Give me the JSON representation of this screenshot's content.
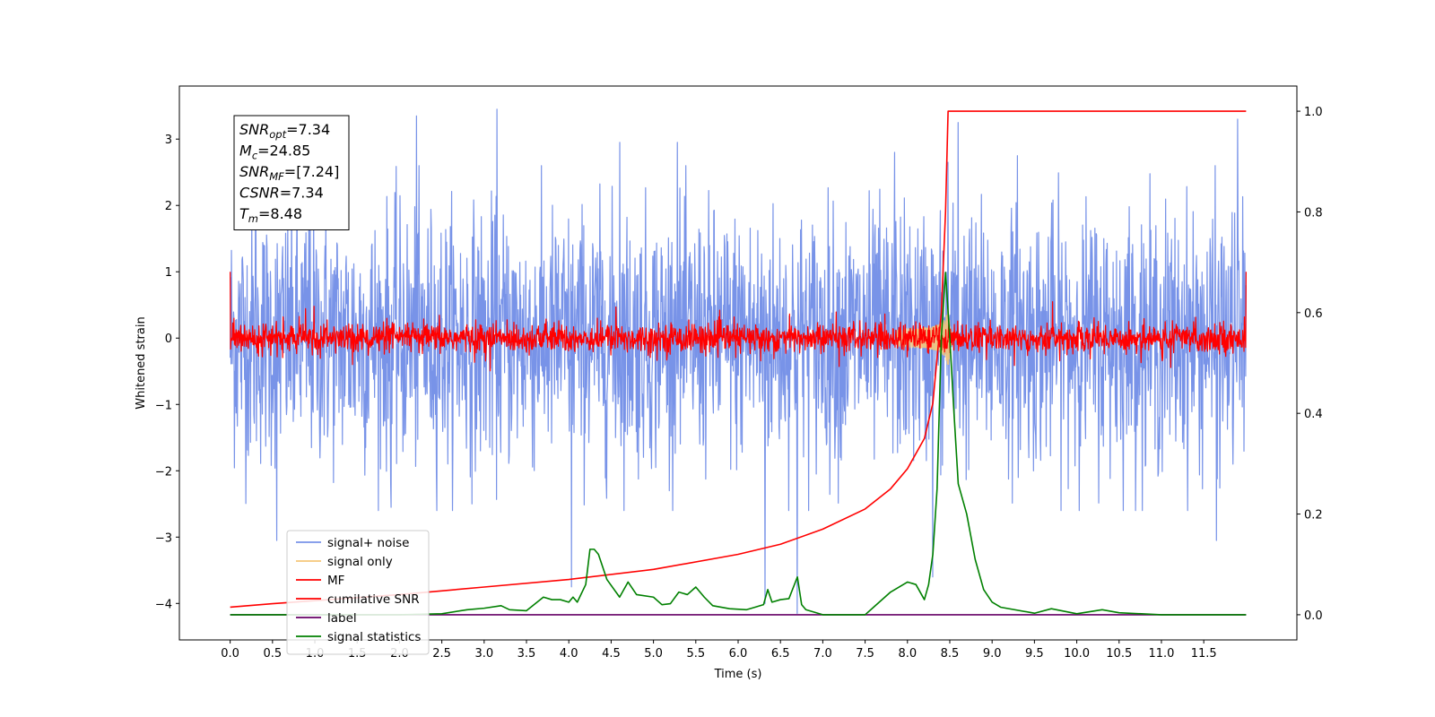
{
  "chart_data": {
    "type": "line",
    "xlabel": "Time (s)",
    "ylabel": "Whitened strain",
    "xlim": [
      -0.6,
      12.6
    ],
    "ylim": [
      -4.55,
      3.8
    ],
    "y2lim": [
      -0.05,
      1.05
    ],
    "x_ticks": [
      0.0,
      0.5,
      1.0,
      1.5,
      2.0,
      2.5,
      3.0,
      3.5,
      4.0,
      4.5,
      5.0,
      5.5,
      6.0,
      6.5,
      7.0,
      7.5,
      8.0,
      8.5,
      9.0,
      9.5,
      10.0,
      10.5,
      11.0,
      11.5
    ],
    "x_tick_labels": [
      "0.0",
      "0.5",
      "1.0",
      "1.5",
      "2.0",
      "2.5",
      "3.0",
      "3.5",
      "4.0",
      "4.5",
      "5.0",
      "5.5",
      "6.0",
      "6.5",
      "7.0",
      "7.5",
      "8.0",
      "8.5",
      "9.0",
      "9.5",
      "10.0",
      "10.5",
      "11.0",
      "11.5"
    ],
    "y_ticks": [
      -4,
      -3,
      -2,
      -1,
      0,
      1,
      2,
      3
    ],
    "y_tick_labels": [
      "−4",
      "−3",
      "−2",
      "−1",
      "0",
      "1",
      "2",
      "3"
    ],
    "y2_ticks": [
      0.0,
      0.2,
      0.4,
      0.6,
      0.8,
      1.0
    ],
    "y2_tick_labels": [
      "0.0",
      "0.2",
      "0.4",
      "0.6",
      "0.8",
      "1.0"
    ],
    "legend_placement": "lower-left",
    "grid": false,
    "annotation": {
      "lines": [
        {
          "sym": "SNR",
          "sub": "opt",
          "value": "=7.34"
        },
        {
          "sym": "M",
          "sub": "c",
          "value": "=24.85"
        },
        {
          "sym": "SNR",
          "sub": "MF",
          "value": "=[7.24]"
        },
        {
          "sym": "CSNR",
          "sub": "",
          "value": "=7.34"
        },
        {
          "sym": "T",
          "sub": "m",
          "value": "=8.48"
        }
      ]
    },
    "series": [
      {
        "name": "signal+ noise",
        "axis": "left",
        "color": "#7893e8",
        "kind": "noise",
        "x_range": [
          0.0,
          12.0
        ],
        "amplitude_range": [
          -3.75,
          3.45
        ],
        "spikes": [
          [
            0.3,
            2.35
          ],
          [
            0.55,
            -3.05
          ],
          [
            0.93,
            2.2
          ],
          [
            2.2,
            3.35
          ],
          [
            3.15,
            3.45
          ],
          [
            4.03,
            -3.75
          ],
          [
            4.6,
            2.95
          ],
          [
            6.32,
            -4.0
          ],
          [
            6.7,
            -4.15
          ],
          [
            7.85,
            2.8
          ],
          [
            8.3,
            -3.6
          ],
          [
            8.48,
            2.65
          ],
          [
            8.6,
            3.25
          ],
          [
            11.9,
            3.3
          ],
          [
            11.65,
            -3.05
          ],
          [
            1.9,
            -2.55
          ],
          [
            5.28,
            2.95
          ],
          [
            9.3,
            2.75
          ]
        ]
      },
      {
        "name": "signal only",
        "axis": "left",
        "color": "#f5c77a",
        "kind": "chirp",
        "merger_time": 8.48,
        "peak_amplitude": 0.5
      },
      {
        "name": "MF",
        "axis": "left",
        "color": "#ff0000",
        "kind": "mf",
        "x_range": [
          0.0,
          12.0
        ],
        "start_value": 1.0,
        "end_value": 1.0
      },
      {
        "name": "cumilative SNR",
        "axis": "right",
        "color": "#ff0000",
        "x": [
          0.0,
          0.5,
          1.0,
          2.0,
          3.0,
          4.0,
          5.0,
          6.0,
          6.5,
          7.0,
          7.5,
          7.8,
          8.0,
          8.2,
          8.3,
          8.4,
          8.45,
          8.48,
          8.5,
          12.0
        ],
        "y": [
          0.015,
          0.022,
          0.028,
          0.04,
          0.055,
          0.07,
          0.09,
          0.12,
          0.14,
          0.17,
          0.21,
          0.25,
          0.29,
          0.35,
          0.42,
          0.6,
          0.8,
          1.0,
          1.0,
          1.0
        ]
      },
      {
        "name": "label",
        "axis": "right",
        "color": "#660066",
        "x": [
          0.0,
          12.0
        ],
        "y": [
          0.0,
          0.0
        ]
      },
      {
        "name": "signal statistics",
        "axis": "right",
        "color": "#008000",
        "x": [
          0.0,
          0.3,
          0.6,
          1.0,
          1.5,
          2.0,
          2.5,
          2.8,
          3.0,
          3.2,
          3.3,
          3.5,
          3.7,
          3.8,
          3.9,
          4.0,
          4.05,
          4.1,
          4.2,
          4.25,
          4.3,
          4.35,
          4.45,
          4.6,
          4.7,
          4.8,
          5.0,
          5.1,
          5.2,
          5.3,
          5.4,
          5.5,
          5.6,
          5.7,
          5.9,
          6.1,
          6.2,
          6.3,
          6.35,
          6.4,
          6.5,
          6.6,
          6.7,
          6.75,
          6.8,
          7.0,
          7.5,
          7.6,
          7.8,
          7.9,
          8.0,
          8.1,
          8.2,
          8.25,
          8.3,
          8.35,
          8.4,
          8.45,
          8.5,
          8.55,
          8.6,
          8.7,
          8.8,
          8.9,
          9.0,
          9.1,
          9.5,
          9.7,
          10.0,
          10.3,
          10.5,
          11.0,
          11.5,
          12.0
        ],
        "y": [
          0.0,
          0.0,
          0.0,
          0.0,
          0.0,
          0.0,
          0.002,
          0.01,
          0.013,
          0.018,
          0.01,
          0.008,
          0.035,
          0.03,
          0.03,
          0.025,
          0.035,
          0.025,
          0.06,
          0.13,
          0.13,
          0.12,
          0.07,
          0.035,
          0.065,
          0.04,
          0.035,
          0.02,
          0.022,
          0.045,
          0.04,
          0.055,
          0.035,
          0.018,
          0.012,
          0.01,
          0.015,
          0.02,
          0.05,
          0.025,
          0.03,
          0.032,
          0.075,
          0.02,
          0.01,
          0.0,
          0.0,
          0.015,
          0.045,
          0.055,
          0.065,
          0.06,
          0.03,
          0.06,
          0.12,
          0.25,
          0.55,
          0.68,
          0.55,
          0.4,
          0.26,
          0.2,
          0.11,
          0.05,
          0.025,
          0.015,
          0.003,
          0.012,
          0.002,
          0.01,
          0.004,
          0.0,
          0.0,
          0.0
        ]
      }
    ]
  }
}
